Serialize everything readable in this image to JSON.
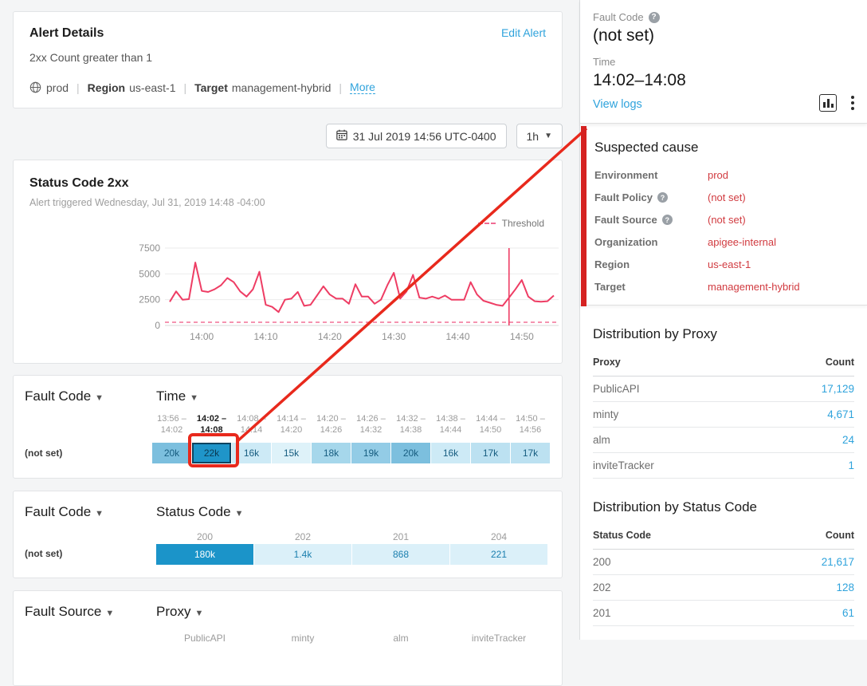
{
  "colors": {
    "accent_blue": "#2fa3dc",
    "alert_value_red": "#d13b40",
    "annotation_red": "#e8291c",
    "chart_line_pink": "#ee3d64",
    "threshold_pink": "#f27096",
    "heatmap_dark_blue": "#1f95c9"
  },
  "alert_details": {
    "title": "Alert Details",
    "edit_link": "Edit Alert",
    "condition": "2xx Count greater than 1",
    "environment": "prod",
    "sep": "|",
    "region_label": "Region",
    "region": "us-east-1",
    "target_label": "Target",
    "target": "management-hybrid",
    "more_link": "More"
  },
  "toolbar": {
    "datetime": "31 Jul 2019 14:56 UTC-0400",
    "range": "1h"
  },
  "chart_data": {
    "type": "line",
    "title": "Status Code 2xx",
    "subtitle": "Alert triggered Wednesday, Jul 31, 2019 14:48 -04:00",
    "ylim": [
      0,
      7500
    ],
    "yticks": [
      0,
      2500,
      5000,
      7500
    ],
    "xticks": [
      {
        "label": "14:00",
        "m": 5
      },
      {
        "label": "14:10",
        "m": 15
      },
      {
        "label": "14:20",
        "m": 25
      },
      {
        "label": "14:30",
        "m": 35
      },
      {
        "label": "14:40",
        "m": 45
      },
      {
        "label": "14:50",
        "m": 55
      }
    ],
    "x_start": "13:55",
    "x_end": "14:55",
    "interval_minutes": 1,
    "series": [
      {
        "name": "Status Code 2xx count",
        "color": "#ee3d64",
        "values": [
          2300,
          3300,
          2500,
          2550,
          6100,
          3350,
          3250,
          3500,
          3900,
          4600,
          4200,
          3300,
          2800,
          3500,
          5200,
          2000,
          1800,
          1300,
          2500,
          2600,
          3250,
          1900,
          2000,
          2900,
          3800,
          3000,
          2600,
          2600,
          2100,
          4000,
          2800,
          2800,
          2100,
          2500,
          3900,
          5100,
          2600,
          3300,
          4900,
          2700,
          2600,
          2800,
          2600,
          2900,
          2500,
          2500,
          2500,
          4200,
          3000,
          2400,
          2200,
          2000,
          1900,
          2700,
          3500,
          4400,
          2800,
          2350,
          2300,
          2350,
          2900
        ]
      }
    ],
    "threshold": {
      "label": "Threshold",
      "value": 1,
      "line_style": "dashed",
      "color": "#f27096"
    },
    "alert_marker": {
      "time": "14:48",
      "m": 53
    },
    "grid": true,
    "legend_position": "top-right"
  },
  "heatmap_time": {
    "row_dim": "Fault Code",
    "col_dim": "Time",
    "row_label": "(not set)",
    "columns": [
      {
        "from": "13:56 –",
        "to": "14:02",
        "value": "20k",
        "color": "#7cbfde",
        "selected": false
      },
      {
        "from": "14:02 –",
        "to": "14:08",
        "value": "22k",
        "color": "#1f95c9",
        "selected": true
      },
      {
        "from": "14:08 –",
        "to": "14:14",
        "value": "16k",
        "color": "#cdeaf6",
        "selected": false
      },
      {
        "from": "14:14 –",
        "to": "14:20",
        "value": "15k",
        "color": "#def2f9",
        "selected": false
      },
      {
        "from": "14:20 –",
        "to": "14:26",
        "value": "18k",
        "color": "#a6d7eb",
        "selected": false
      },
      {
        "from": "14:26 –",
        "to": "14:32",
        "value": "19k",
        "color": "#93cce6",
        "selected": false
      },
      {
        "from": "14:32 –",
        "to": "14:38",
        "value": "20k",
        "color": "#7cbfde",
        "selected": false
      },
      {
        "from": "14:38 –",
        "to": "14:44",
        "value": "16k",
        "color": "#cdeaf6",
        "selected": false
      },
      {
        "from": "14:44 –",
        "to": "14:50",
        "value": "17k",
        "color": "#bce1f1",
        "selected": false
      },
      {
        "from": "14:50 –",
        "to": "14:56",
        "value": "17k",
        "color": "#bce1f1",
        "selected": false
      }
    ]
  },
  "heatmap_status": {
    "row_dim": "Fault Code",
    "col_dim": "Status Code",
    "row_label": "(not set)",
    "columns": [
      {
        "label": "200",
        "value": "180k",
        "color": "#1b94c9",
        "text": "#ffffff"
      },
      {
        "label": "202",
        "value": "1.4k",
        "color": "#dbf0f9",
        "text": "#1b7fae"
      },
      {
        "label": "201",
        "value": "868",
        "color": "#dbf0f9",
        "text": "#1b7fae"
      },
      {
        "label": "204",
        "value": "221",
        "color": "#dbf0f9",
        "text": "#1b7fae"
      }
    ]
  },
  "heatmap_proxy": {
    "row_dim": "Fault Source",
    "col_dim": "Proxy",
    "columns": [
      "PublicAPI",
      "minty",
      "alm",
      "inviteTracker"
    ]
  },
  "panel": {
    "fault_code_label": "Fault Code",
    "fault_code_value": "(not set)",
    "time_label": "Time",
    "time_value": "14:02–14:08",
    "view_logs": "View logs",
    "suspected_cause": {
      "title": "Suspected cause",
      "rows": [
        {
          "label": "Environment",
          "value": "prod",
          "help": false
        },
        {
          "label": "Fault Policy",
          "value": "(not set)",
          "help": true
        },
        {
          "label": "Fault Source",
          "value": "(not set)",
          "help": true
        },
        {
          "label": "Organization",
          "value": "apigee-internal",
          "help": false
        },
        {
          "label": "Region",
          "value": "us-east-1",
          "help": false
        },
        {
          "label": "Target",
          "value": "management-hybrid",
          "help": false
        }
      ]
    },
    "dist_proxy": {
      "title": "Distribution by Proxy",
      "col_name": "Proxy",
      "col_count": "Count",
      "rows": [
        {
          "name": "PublicAPI",
          "count": "17,129"
        },
        {
          "name": "minty",
          "count": "4,671"
        },
        {
          "name": "alm",
          "count": "24"
        },
        {
          "name": "inviteTracker",
          "count": "1"
        }
      ]
    },
    "dist_status": {
      "title": "Distribution by Status Code",
      "col_name": "Status Code",
      "col_count": "Count",
      "rows": [
        {
          "name": "200",
          "count": "21,617"
        },
        {
          "name": "202",
          "count": "128"
        },
        {
          "name": "201",
          "count": "61"
        }
      ]
    }
  }
}
